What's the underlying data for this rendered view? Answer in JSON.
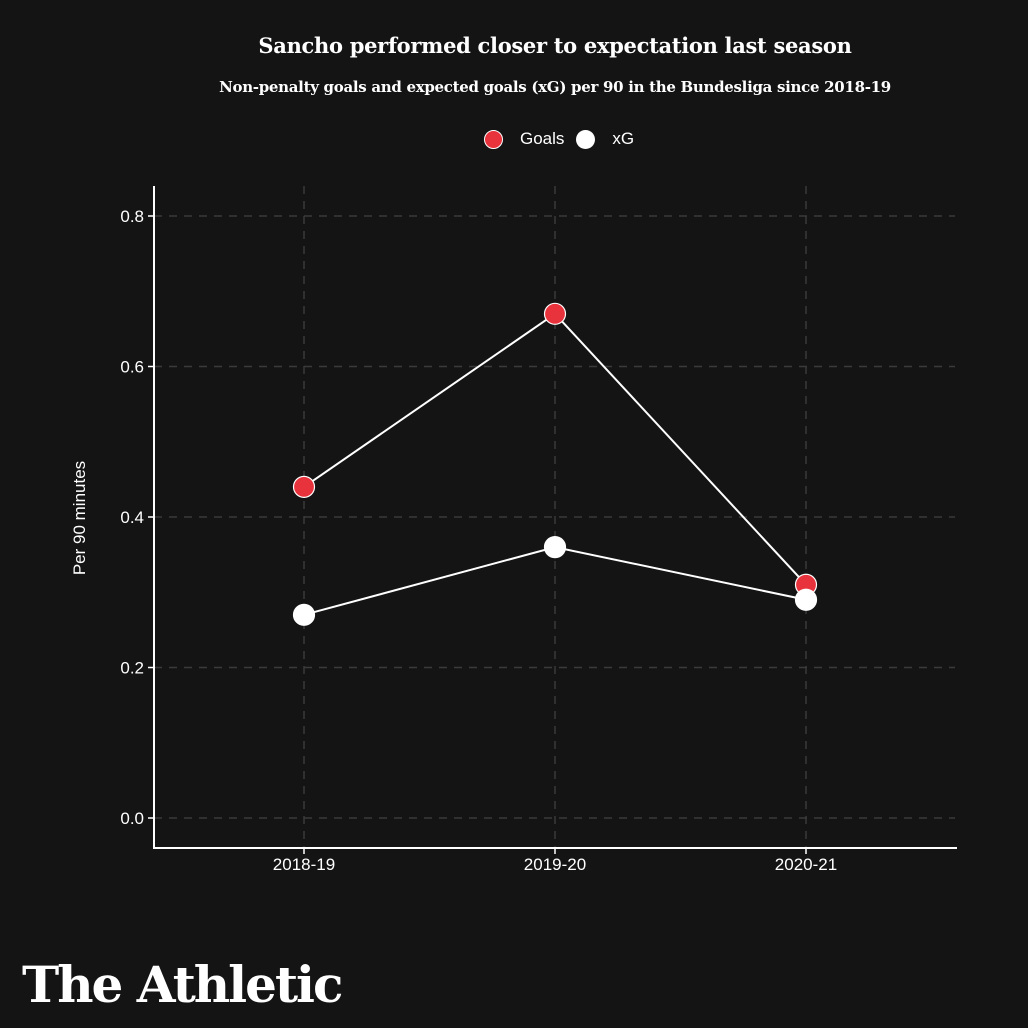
{
  "chart_data": {
    "type": "line",
    "title": "Sancho performed closer to expectation last season",
    "subtitle": "Non-penalty goals and expected goals (xG) per 90 in the Bundesliga since 2018-19",
    "xlabel": "",
    "ylabel": "Per 90 minutes",
    "categories": [
      "2018-19",
      "2019-20",
      "2020-21"
    ],
    "series": [
      {
        "name": "Goals",
        "color": "#e8323c",
        "values": [
          0.44,
          0.67,
          0.31
        ]
      },
      {
        "name": "xG",
        "color": "#ffffff",
        "values": [
          0.27,
          0.36,
          0.29
        ]
      }
    ],
    "ylim": [
      0.0,
      0.8
    ],
    "yticks": [
      "0.0",
      "0.2",
      "0.4",
      "0.6",
      "0.8"
    ],
    "grid": true,
    "legend_position": "top-center"
  },
  "legend": {
    "items": [
      {
        "label": "Goals"
      },
      {
        "label": "xG"
      }
    ]
  },
  "branding": {
    "logo_text": "The Athletic"
  },
  "colors": {
    "background": "#141414",
    "goals": "#e8323c",
    "xg": "#ffffff",
    "grid": "#3a3a3a",
    "line": "#ffffff"
  }
}
